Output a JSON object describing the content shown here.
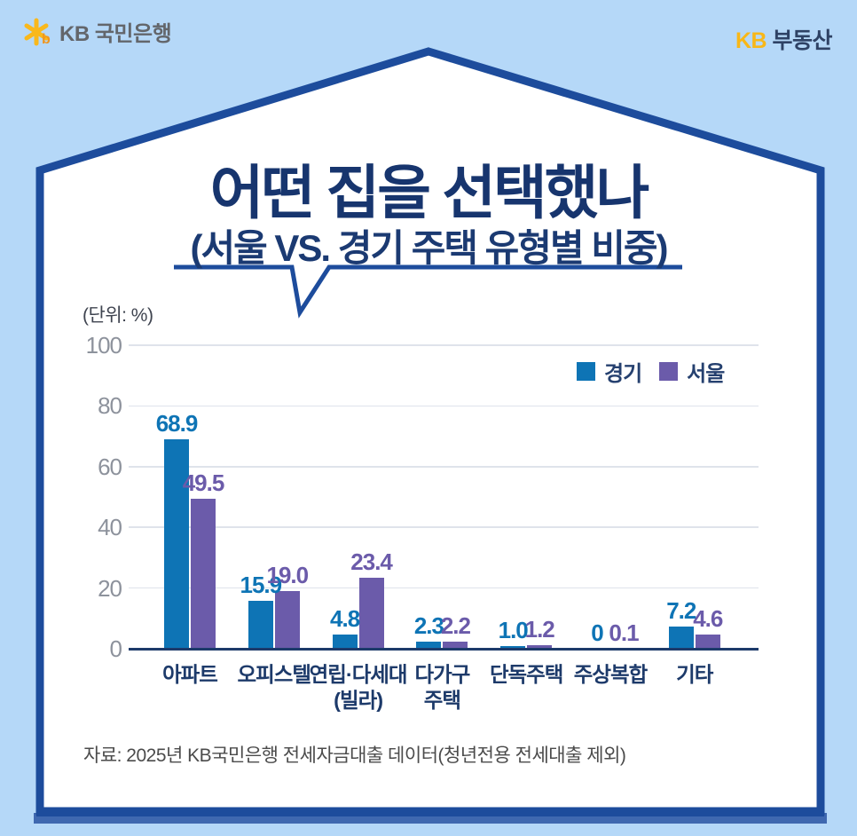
{
  "header": {
    "logo_text": "KB 국민은행",
    "brand_kb": "KB",
    "brand_name": " 부동산",
    "brand_kb_color": "#f8b718",
    "brand_name_color": "#2e4265",
    "star_color": "#f9b81c"
  },
  "title_block": {
    "title": "어떤 집을 선택했나",
    "subtitle": "(서울 VS. 경기 주택 유형별 비중)"
  },
  "chart_data": {
    "type": "bar",
    "title": "서울 vs. 경기 주택 유형별 비중",
    "unit_label": "(단위: %)",
    "ylabel": "%",
    "ylim": [
      0,
      100
    ],
    "y_ticks": [
      0,
      20,
      40,
      60,
      80,
      100
    ],
    "grid": true,
    "legend_position": "top-right",
    "categories": [
      "아파트",
      "오피스텔",
      "연립·다세대\n(빌라)",
      "다가구\n주택",
      "단독주택",
      "주상복합",
      "기타"
    ],
    "series": [
      {
        "name": "경기",
        "color": "#0e74b5",
        "values": [
          68.9,
          15.9,
          4.8,
          2.3,
          1.0,
          0,
          7.2
        ],
        "labels": [
          "68.9",
          "15.9",
          "4.8",
          "2.3",
          "1.0",
          "0",
          "7.2"
        ]
      },
      {
        "name": "서울",
        "color": "#6b5baa",
        "values": [
          49.5,
          19.0,
          23.4,
          2.2,
          1.2,
          0.1,
          4.6
        ],
        "labels": [
          "49.5",
          "19.0",
          "23.4",
          "2.2",
          "1.2",
          "0.1",
          "4.6"
        ]
      }
    ]
  },
  "source": "자료: 2025년 KB국민은행 전세자금대출 데이터(청년전용 전세대출 제외)",
  "colors": {
    "background": "#b5d8f8",
    "house_border": "#1d4c9c",
    "house_shadow": "#3f68b0",
    "baseline": "#1c3a6a",
    "gridline": "#dfe3eb",
    "tick_text": "#8d929c",
    "category_text": "#1d3a6a"
  }
}
